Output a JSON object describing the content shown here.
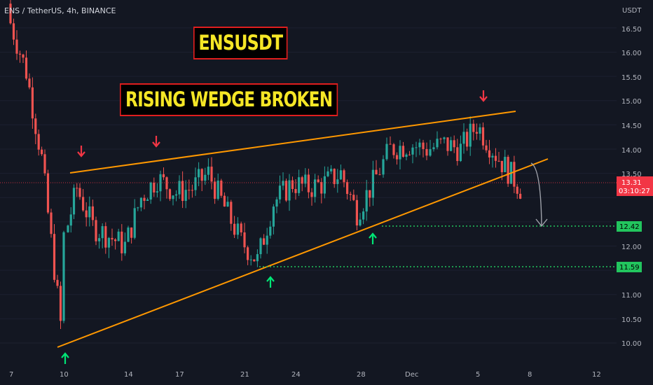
{
  "header": {
    "ticker": "ENS / TetherUS, 4h, BINANCE",
    "title": "ENSUSDT",
    "subtitle": "RISING WEDGE BROKEN"
  },
  "axis": {
    "currency": "USDT",
    "price_labels": [
      "16.50",
      "16.00",
      "15.50",
      "15.00",
      "14.50",
      "14.00",
      "13.50",
      "12.00",
      "11.00",
      "10.50",
      "10.00"
    ],
    "date_labels": [
      "7",
      "10",
      "14",
      "17",
      "21",
      "24",
      "28",
      "Dec",
      "5",
      "8",
      "12"
    ]
  },
  "badges": {
    "current_price": "13.31",
    "countdown": "03:10:27",
    "target_1": "12.42",
    "target_2": "11.59"
  },
  "colors": {
    "background": "#131722",
    "bull": "#26a69a",
    "bear": "#ef5350",
    "wedge_line": "#ff9800",
    "arrow_up": "#00e676",
    "arrow_down": "#f23645",
    "target_line": "#4caf50",
    "price_badge": "#f23645",
    "target_badge": "#22c55e"
  },
  "chart_data": {
    "type": "candlestick",
    "interval": "4h",
    "symbol": "ENSUSDT",
    "ylim": [
      9.5,
      17.0
    ],
    "x_ticks": [
      "7",
      "10",
      "14",
      "17",
      "21",
      "24",
      "28",
      "Dec",
      "5",
      "8",
      "12"
    ],
    "y_ticks": [
      10.0,
      10.5,
      11.0,
      11.5,
      12.0,
      12.5,
      13.0,
      13.5,
      14.0,
      14.5,
      15.0,
      15.5,
      16.0,
      16.5
    ],
    "close_path_anchors": [
      {
        "x": "7",
        "y": 16.8
      },
      {
        "x": "8",
        "y": 15.6
      },
      {
        "x": "9",
        "y": 13.8
      },
      {
        "x": "10",
        "y": 10.4
      },
      {
        "x": "10.5",
        "y": 12.2
      },
      {
        "x": "11",
        "y": 13.2
      },
      {
        "x": "12",
        "y": 12.4
      },
      {
        "x": "13",
        "y": 12.2
      },
      {
        "x": "14",
        "y": 12.0
      },
      {
        "x": "15",
        "y": 13.0
      },
      {
        "x": "16",
        "y": 13.4
      },
      {
        "x": "17",
        "y": 13.1
      },
      {
        "x": "18",
        "y": 13.2
      },
      {
        "x": "19",
        "y": 13.5
      },
      {
        "x": "20",
        "y": 12.8
      },
      {
        "x": "21",
        "y": 12.1
      },
      {
        "x": "22",
        "y": 11.7
      },
      {
        "x": "23",
        "y": 12.9
      },
      {
        "x": "24",
        "y": 13.3
      },
      {
        "x": "25",
        "y": 13.2
      },
      {
        "x": "26",
        "y": 13.3
      },
      {
        "x": "27",
        "y": 13.5
      },
      {
        "x": "28",
        "y": 12.7
      },
      {
        "x": "29",
        "y": 13.3
      },
      {
        "x": "Nov 30",
        "y": 14.0
      },
      {
        "x": "Dec",
        "y": 14.1
      },
      {
        "x": "2",
        "y": 14.0
      },
      {
        "x": "3",
        "y": 14.1
      },
      {
        "x": "4",
        "y": 14.0
      },
      {
        "x": "5",
        "y": 14.5
      },
      {
        "x": "6",
        "y": 13.9
      },
      {
        "x": "7",
        "y": 13.2
      }
    ],
    "current_price": 13.31,
    "wedge": {
      "resistance": [
        {
          "x": "10",
          "y": 13.55
        },
        {
          "x": "Dec 6",
          "y": 14.8
        }
      ],
      "support": [
        {
          "x": "10",
          "y": 9.93
        },
        {
          "x": "Dec 8",
          "y": 13.8
        }
      ]
    },
    "swing_highs": [
      {
        "x": "11",
        "y": 13.55
      },
      {
        "x": "15",
        "y": 13.75
      },
      {
        "x": "Dec 5",
        "y": 14.7
      }
    ],
    "swing_lows": [
      {
        "x": "10",
        "y": 9.93
      },
      {
        "x": "22",
        "y": 11.5
      },
      {
        "x": "28",
        "y": 12.5
      }
    ],
    "projection": [
      {
        "x": "Dec 8",
        "y": 13.7
      },
      {
        "x": "Dec 9",
        "y": 12.42
      }
    ],
    "targets": [
      12.42,
      11.59
    ]
  }
}
